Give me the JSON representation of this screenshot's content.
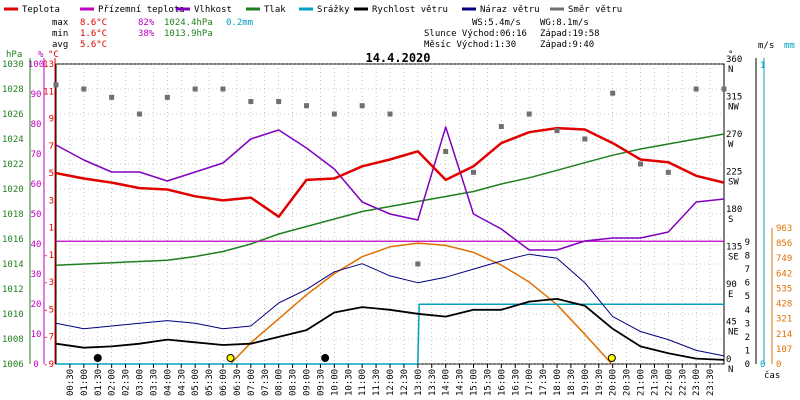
{
  "chart_data": {
    "type": "line",
    "title": "14.4.2020",
    "x_unit_label": "čas",
    "time_ticks": [
      "00:30",
      "01:00",
      "01:30",
      "02:00",
      "02:30",
      "03:00",
      "03:30",
      "04:00",
      "04:30",
      "05:00",
      "05:30",
      "06:00",
      "06:30",
      "07:00",
      "07:30",
      "08:00",
      "08:30",
      "09:00",
      "09:30",
      "10:00",
      "10:30",
      "11:00",
      "11:30",
      "12:00",
      "12:30",
      "13:00",
      "13:30",
      "14:00",
      "14:30",
      "15:00",
      "15:30",
      "16:00",
      "16:30",
      "17:00",
      "17:30",
      "18:00",
      "18:30",
      "19:00",
      "19:30",
      "20:00",
      "20:30",
      "21:00",
      "21:30",
      "22:00",
      "22:30",
      "23:00",
      "23:30"
    ],
    "legend": [
      {
        "name": "Teplota",
        "color": "#e00000"
      },
      {
        "name": "Přízemní teplota",
        "color": "#c000c0"
      },
      {
        "name": "Vlhkost",
        "color": "#8000c0"
      },
      {
        "name": "Tlak",
        "color": "#208020"
      },
      {
        "name": "Srážky",
        "color": "#00a0c0"
      },
      {
        "name": "Rychlost větru",
        "color": "#000000"
      },
      {
        "name": "Náraz větru",
        "color": "#000080"
      },
      {
        "name": "Směr větru",
        "color": "#707070"
      }
    ],
    "stats": {
      "rows": [
        {
          "label": "max",
          "temp": "8.6°C",
          "hum": "82%",
          "press": "1024.4hPa",
          "rain": "0.2mm"
        },
        {
          "label": "min",
          "temp": "1.6°C",
          "hum": "38%",
          "press": "1013.9hPa",
          "rain": ""
        },
        {
          "label": "avg",
          "temp": "5.6°C",
          "hum": "",
          "press": "",
          "rain": ""
        }
      ],
      "wind_line": "WS:5.4m/s",
      "gust_line": "WG:8.1m/s",
      "sun_line": "Slunce Východ:06:16",
      "sun_set": "Západ:19:58",
      "moon_line": "Měsíc  Východ:1:30",
      "moon_set": "Západ:9:40"
    },
    "axes": {
      "hpa": {
        "label": "hPa",
        "ticks": [
          1006,
          1008,
          1010,
          1012,
          1014,
          1016,
          1018,
          1020,
          1022,
          1024,
          1026,
          1028,
          1030
        ],
        "color": "#208020"
      },
      "pct": {
        "label": "%",
        "ticks": [
          0,
          10,
          20,
          30,
          40,
          50,
          60,
          70,
          80,
          90,
          100
        ],
        "color": "#c000c0"
      },
      "degc": {
        "label": "°C",
        "ticks": [
          -9,
          -7,
          -5,
          -3,
          -1,
          1,
          3,
          5,
          7,
          9,
          11,
          13
        ],
        "color": "#e00000",
        "zero_line": 0
      },
      "dir": {
        "label": "°",
        "ticks": [
          "0 N",
          "45 NE",
          "90 E",
          "135 SE",
          "180 S",
          "225 SW",
          "270 W",
          "315 NW",
          "360 N"
        ]
      },
      "ms": {
        "label": "m/s",
        "ticks": [
          0,
          1,
          2,
          3,
          4,
          5,
          6,
          7,
          8,
          9
        ]
      },
      "mm": {
        "label": "mm",
        "ticks": [
          0,
          1
        ]
      },
      "wm2": {
        "ticks": [
          0,
          107,
          214,
          321,
          428,
          535,
          642,
          749,
          856,
          963
        ],
        "color": "#e07000"
      }
    },
    "series": [
      {
        "name": "Teplota",
        "unit": "°C",
        "x": [
          0,
          1,
          2,
          3,
          4,
          5,
          6,
          7,
          8,
          9,
          10,
          11,
          12,
          13,
          14,
          15,
          16,
          17,
          18,
          19,
          20,
          21,
          22,
          23,
          24
        ],
        "values": [
          5.0,
          4.6,
          4.3,
          3.9,
          3.8,
          3.3,
          3.0,
          3.2,
          1.8,
          4.5,
          4.6,
          5.5,
          6.0,
          6.6,
          4.5,
          5.5,
          7.2,
          8.0,
          8.3,
          8.2,
          7.2,
          6.0,
          5.8,
          4.8,
          4.3
        ]
      },
      {
        "name": "Vlhkost",
        "unit": "%",
        "x": [
          0,
          1,
          2,
          3,
          4,
          5,
          6,
          7,
          8,
          9,
          10,
          11,
          12,
          13,
          14,
          15,
          16,
          17,
          18,
          19,
          20,
          21,
          22,
          23,
          24
        ],
        "values": [
          73,
          68,
          64,
          64,
          61,
          64,
          67,
          75,
          78,
          72,
          65,
          54,
          50,
          48,
          79,
          50,
          45,
          38,
          38,
          41,
          42,
          42,
          44,
          54,
          55
        ]
      },
      {
        "name": "Tlak",
        "unit": "hPa",
        "x": [
          0,
          1,
          2,
          3,
          4,
          5,
          6,
          7,
          8,
          9,
          10,
          11,
          12,
          13,
          14,
          15,
          16,
          17,
          18,
          19,
          20,
          21,
          22,
          23,
          24
        ],
        "values": [
          1013.9,
          1014.0,
          1014.1,
          1014.2,
          1014.3,
          1014.6,
          1015.0,
          1015.6,
          1016.4,
          1017.0,
          1017.6,
          1018.2,
          1018.6,
          1019.0,
          1019.4,
          1019.8,
          1020.4,
          1020.9,
          1021.5,
          1022.1,
          1022.7,
          1023.2,
          1023.6,
          1024.0,
          1024.4
        ]
      },
      {
        "name": "Přízemní teplota",
        "unit": "°C",
        "x": [
          0,
          24
        ],
        "values": [
          0,
          0
        ]
      },
      {
        "name": "Rychlost větru",
        "unit": "m/s",
        "x": [
          0,
          1,
          2,
          3,
          4,
          5,
          6,
          7,
          8,
          9,
          10,
          11,
          12,
          13,
          14,
          15,
          16,
          17,
          18,
          19,
          20,
          21,
          22,
          23,
          24
        ],
        "values": [
          1.5,
          1.2,
          1.3,
          1.5,
          1.8,
          1.6,
          1.4,
          1.5,
          2.0,
          2.5,
          3.8,
          4.2,
          4.0,
          3.7,
          3.5,
          4.0,
          4.0,
          4.6,
          4.8,
          4.3,
          2.6,
          1.3,
          0.8,
          0.4,
          0.3
        ]
      },
      {
        "name": "Náraz větru",
        "unit": "m/s",
        "x": [
          0,
          1,
          2,
          3,
          4,
          5,
          6,
          7,
          8,
          9,
          10,
          11,
          12,
          13,
          14,
          15,
          16,
          17,
          18,
          19,
          20,
          21,
          22,
          23,
          24
        ],
        "values": [
          3.0,
          2.6,
          2.8,
          3.0,
          3.2,
          3.0,
          2.6,
          2.8,
          4.5,
          5.5,
          6.8,
          7.4,
          6.5,
          6.0,
          6.4,
          7.0,
          7.6,
          8.1,
          7.8,
          6.0,
          3.5,
          2.4,
          1.8,
          1.0,
          0.6
        ]
      },
      {
        "name": "Srážky",
        "unit": "mm",
        "x": [
          0,
          13.0,
          13.05,
          24
        ],
        "values": [
          0,
          0,
          0.2,
          0.2
        ]
      },
      {
        "name": "Směr větru",
        "unit": "°",
        "x": [
          0,
          1,
          2,
          3,
          4,
          5,
          6,
          7,
          8,
          9,
          10,
          11,
          12,
          13,
          14,
          15,
          16,
          17,
          18,
          19,
          20,
          21,
          22,
          23,
          24
        ],
        "values": [
          335,
          330,
          320,
          300,
          320,
          330,
          330,
          315,
          315,
          310,
          300,
          310,
          300,
          120,
          255,
          230,
          285,
          300,
          280,
          270,
          325,
          240,
          230,
          330,
          330
        ]
      },
      {
        "name": "Solar",
        "unit": "W/m²",
        "x": [
          6.27,
          7,
          8,
          9,
          10,
          11,
          12,
          13,
          14,
          15,
          16,
          17,
          18,
          19,
          19.97
        ],
        "values": [
          0,
          150,
          320,
          490,
          640,
          760,
          830,
          856,
          840,
          790,
          700,
          580,
          420,
          210,
          0
        ]
      }
    ]
  }
}
